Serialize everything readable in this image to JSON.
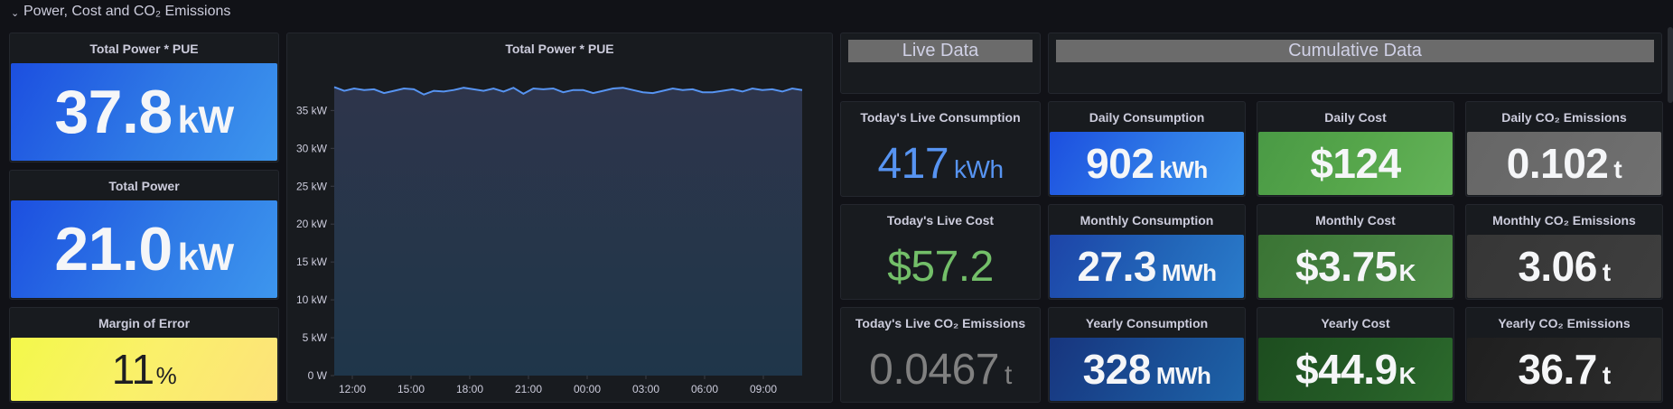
{
  "row": {
    "title": "Power, Cost and CO₂ Emissions",
    "collapse_icon": "chevron-down-icon"
  },
  "left_stats": [
    {
      "title": "Total Power * PUE",
      "value": "37.8",
      "unit": "kW",
      "color": "#1f60c4"
    },
    {
      "title": "Total Power",
      "value": "21.0",
      "unit": "kW",
      "color": "#1f60c4"
    },
    {
      "title": "Margin of Error",
      "value": "11",
      "unit": "%",
      "color": "#fade2a"
    }
  ],
  "chart": {
    "title": "Total Power * PUE",
    "line_color": "#5794f2"
  },
  "chart_data": {
    "type": "area",
    "title": "Total Power * PUE",
    "xlabel": "",
    "ylabel": "",
    "ylim": [
      0,
      38.5
    ],
    "y_ticks": [
      "0 W",
      "5 kW",
      "10 kW",
      "15 kW",
      "20 kW",
      "25 kW",
      "30 kW",
      "35 kW"
    ],
    "y_tick_values": [
      0,
      5,
      10,
      15,
      20,
      25,
      30,
      35
    ],
    "x_ticks": [
      "12:00",
      "15:00",
      "18:00",
      "21:00",
      "00:00",
      "03:00",
      "06:00",
      "09:00"
    ],
    "grid": false,
    "legend": "none",
    "series": [
      {
        "name": "Total Power * PUE",
        "unit": "kW",
        "x_hours_from_start": [
          0,
          0.5,
          1,
          1.5,
          2,
          2.5,
          3,
          3.5,
          4,
          4.5,
          5,
          5.5,
          6,
          6.5,
          7,
          7.5,
          8,
          8.5,
          9,
          9.5,
          10,
          10.5,
          11,
          11.5,
          12,
          12.5,
          13,
          13.5,
          14,
          14.5,
          15,
          15.5,
          16,
          16.5,
          17,
          17.5,
          18,
          18.5,
          19,
          19.5,
          20,
          20.5,
          21,
          21.5,
          22,
          22.5,
          23,
          23.5
        ],
        "values": [
          38.1,
          37.6,
          37.9,
          37.7,
          37.8,
          37.3,
          37.6,
          37.9,
          37.8,
          37.1,
          37.6,
          37.5,
          37.7,
          38.0,
          37.8,
          37.6,
          37.9,
          37.5,
          38.0,
          37.2,
          37.9,
          37.8,
          37.9,
          37.4,
          37.7,
          37.7,
          37.3,
          37.6,
          37.9,
          38.0,
          37.7,
          37.4,
          37.3,
          37.6,
          37.9,
          37.7,
          37.8,
          37.4,
          37.4,
          37.6,
          37.8,
          37.5,
          37.9,
          37.7,
          37.8,
          37.5,
          37.9,
          37.7
        ]
      }
    ]
  },
  "section_headers": {
    "live": "Live Data",
    "cumulative": "Cumulative Data"
  },
  "live_stats": [
    {
      "title": "Today's Live Consumption",
      "value": "417",
      "unit": "kWh",
      "color": "#5794f2"
    },
    {
      "title": "Today's Live Cost",
      "value": "$57.2",
      "unit": "",
      "color": "#73bf69"
    },
    {
      "title": "Today's Live CO₂ Emissions",
      "value": "0.0467",
      "unit": "t",
      "color": "#808080"
    }
  ],
  "cumulative_stats": [
    [
      {
        "title": "Daily Consumption",
        "value": "902",
        "unit": "kWh",
        "color": "#1f60c4"
      },
      {
        "title": "Daily Cost",
        "value": "$124",
        "unit": "",
        "color": "#56a64b"
      },
      {
        "title": "Daily CO₂ Emissions",
        "value": "0.102",
        "unit": "t",
        "color": "#6b6b6b"
      }
    ],
    [
      {
        "title": "Monthly Consumption",
        "value": "27.3",
        "unit": "MWh",
        "color": "#1f4fa8"
      },
      {
        "title": "Monthly Cost",
        "value": "$3.75",
        "unit": "K",
        "color": "#3e7a37"
      },
      {
        "title": "Monthly CO₂ Emissions",
        "value": "3.06",
        "unit": "t",
        "color": "#3a3a3a"
      }
    ],
    [
      {
        "title": "Yearly Consumption",
        "value": "328",
        "unit": "MWh",
        "color": "#19378a"
      },
      {
        "title": "Yearly Cost",
        "value": "$44.9",
        "unit": "K",
        "color": "#1f5421"
      },
      {
        "title": "Yearly CO₂ Emissions",
        "value": "36.7",
        "unit": "t",
        "color": "#262626"
      }
    ]
  ]
}
